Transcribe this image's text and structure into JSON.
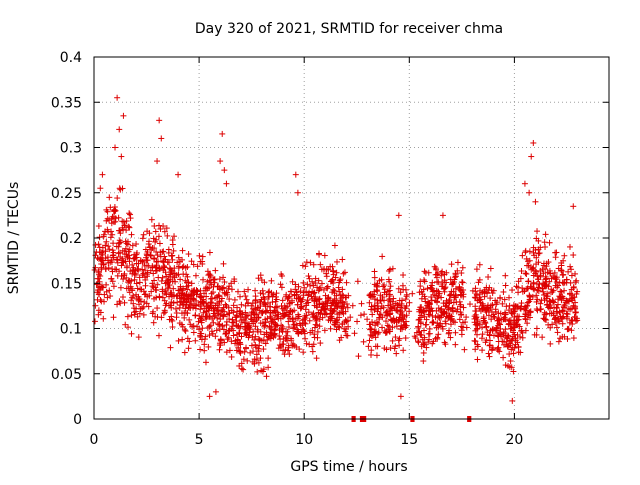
{
  "chart_data": {
    "type": "scatter",
    "title": "Day 320 of 2021, SRMTID for receiver chma",
    "xlabel": "GPS time / hours",
    "ylabel": "SRMTID / TECUs",
    "xlim": [
      0,
      24.5
    ],
    "ylim": [
      0,
      0.4
    ],
    "x_ticks": [
      0,
      5,
      10,
      15,
      20
    ],
    "x_tick_labels": [
      "0",
      "5",
      "10",
      "15",
      "20"
    ],
    "y_ticks": [
      0,
      0.05,
      0.1,
      0.15,
      0.2,
      0.25,
      0.3,
      0.35,
      0.4
    ],
    "y_tick_labels": [
      "0",
      "0.05",
      "0.1",
      "0.15",
      "0.2",
      "0.25",
      "0.3",
      "0.35",
      "0.4"
    ],
    "grid": true,
    "marker": "+",
    "series_color": "#dd0000",
    "data_range_hours": [
      0,
      23
    ],
    "envelope": [
      {
        "x": 0.0,
        "y": 0.15,
        "spread": 0.045
      },
      {
        "x": 0.5,
        "y": 0.17,
        "spread": 0.05
      },
      {
        "x": 1.0,
        "y": 0.2,
        "spread": 0.07
      },
      {
        "x": 1.5,
        "y": 0.18,
        "spread": 0.07
      },
      {
        "x": 2.0,
        "y": 0.15,
        "spread": 0.055
      },
      {
        "x": 3.0,
        "y": 0.17,
        "spread": 0.06
      },
      {
        "x": 4.0,
        "y": 0.14,
        "spread": 0.05
      },
      {
        "x": 5.0,
        "y": 0.13,
        "spread": 0.05
      },
      {
        "x": 6.0,
        "y": 0.12,
        "spread": 0.05
      },
      {
        "x": 7.0,
        "y": 0.1,
        "spread": 0.045
      },
      {
        "x": 8.0,
        "y": 0.11,
        "spread": 0.045
      },
      {
        "x": 9.0,
        "y": 0.11,
        "spread": 0.045
      },
      {
        "x": 10.0,
        "y": 0.12,
        "spread": 0.045
      },
      {
        "x": 11.0,
        "y": 0.13,
        "spread": 0.045
      },
      {
        "x": 12.0,
        "y": 0.13,
        "spread": 0.045
      },
      {
        "x": 13.0,
        "y": 0.12,
        "spread": 0.045
      },
      {
        "x": 14.0,
        "y": 0.12,
        "spread": 0.045
      },
      {
        "x": 15.0,
        "y": 0.11,
        "spread": 0.045
      },
      {
        "x": 16.0,
        "y": 0.12,
        "spread": 0.045
      },
      {
        "x": 17.0,
        "y": 0.13,
        "spread": 0.045
      },
      {
        "x": 18.0,
        "y": 0.12,
        "spread": 0.045
      },
      {
        "x": 19.0,
        "y": 0.11,
        "spread": 0.045
      },
      {
        "x": 20.0,
        "y": 0.1,
        "spread": 0.045
      },
      {
        "x": 21.0,
        "y": 0.16,
        "spread": 0.06
      },
      {
        "x": 22.0,
        "y": 0.13,
        "spread": 0.05
      },
      {
        "x": 23.0,
        "y": 0.13,
        "spread": 0.045
      }
    ],
    "peaks": [
      {
        "x": 1.1,
        "y": 0.355
      },
      {
        "x": 1.4,
        "y": 0.335
      },
      {
        "x": 1.2,
        "y": 0.32
      },
      {
        "x": 1.0,
        "y": 0.3
      },
      {
        "x": 1.3,
        "y": 0.29
      },
      {
        "x": 3.1,
        "y": 0.33
      },
      {
        "x": 3.2,
        "y": 0.31
      },
      {
        "x": 3.0,
        "y": 0.285
      },
      {
        "x": 6.1,
        "y": 0.315
      },
      {
        "x": 6.0,
        "y": 0.285
      },
      {
        "x": 6.2,
        "y": 0.275
      },
      {
        "x": 6.3,
        "y": 0.26
      },
      {
        "x": 9.6,
        "y": 0.27
      },
      {
        "x": 9.7,
        "y": 0.25
      },
      {
        "x": 4.0,
        "y": 0.27
      },
      {
        "x": 20.9,
        "y": 0.305
      },
      {
        "x": 20.8,
        "y": 0.29
      },
      {
        "x": 20.5,
        "y": 0.26
      },
      {
        "x": 20.7,
        "y": 0.25
      },
      {
        "x": 21.0,
        "y": 0.24
      },
      {
        "x": 0.4,
        "y": 0.27
      },
      {
        "x": 0.3,
        "y": 0.255
      },
      {
        "x": 14.5,
        "y": 0.225
      },
      {
        "x": 16.6,
        "y": 0.225
      },
      {
        "x": 22.8,
        "y": 0.235
      },
      {
        "x": 5.8,
        "y": 0.03
      },
      {
        "x": 14.6,
        "y": 0.025
      },
      {
        "x": 19.9,
        "y": 0.02
      },
      {
        "x": 5.5,
        "y": 0.025
      }
    ],
    "gap_markers": [
      {
        "x_start": 12.25,
        "x_end": 12.45
      },
      {
        "x_start": 12.65,
        "x_end": 12.95
      },
      {
        "x_start": 15.05,
        "x_end": 15.25
      },
      {
        "x_start": 17.75,
        "x_end": 17.95
      }
    ]
  }
}
